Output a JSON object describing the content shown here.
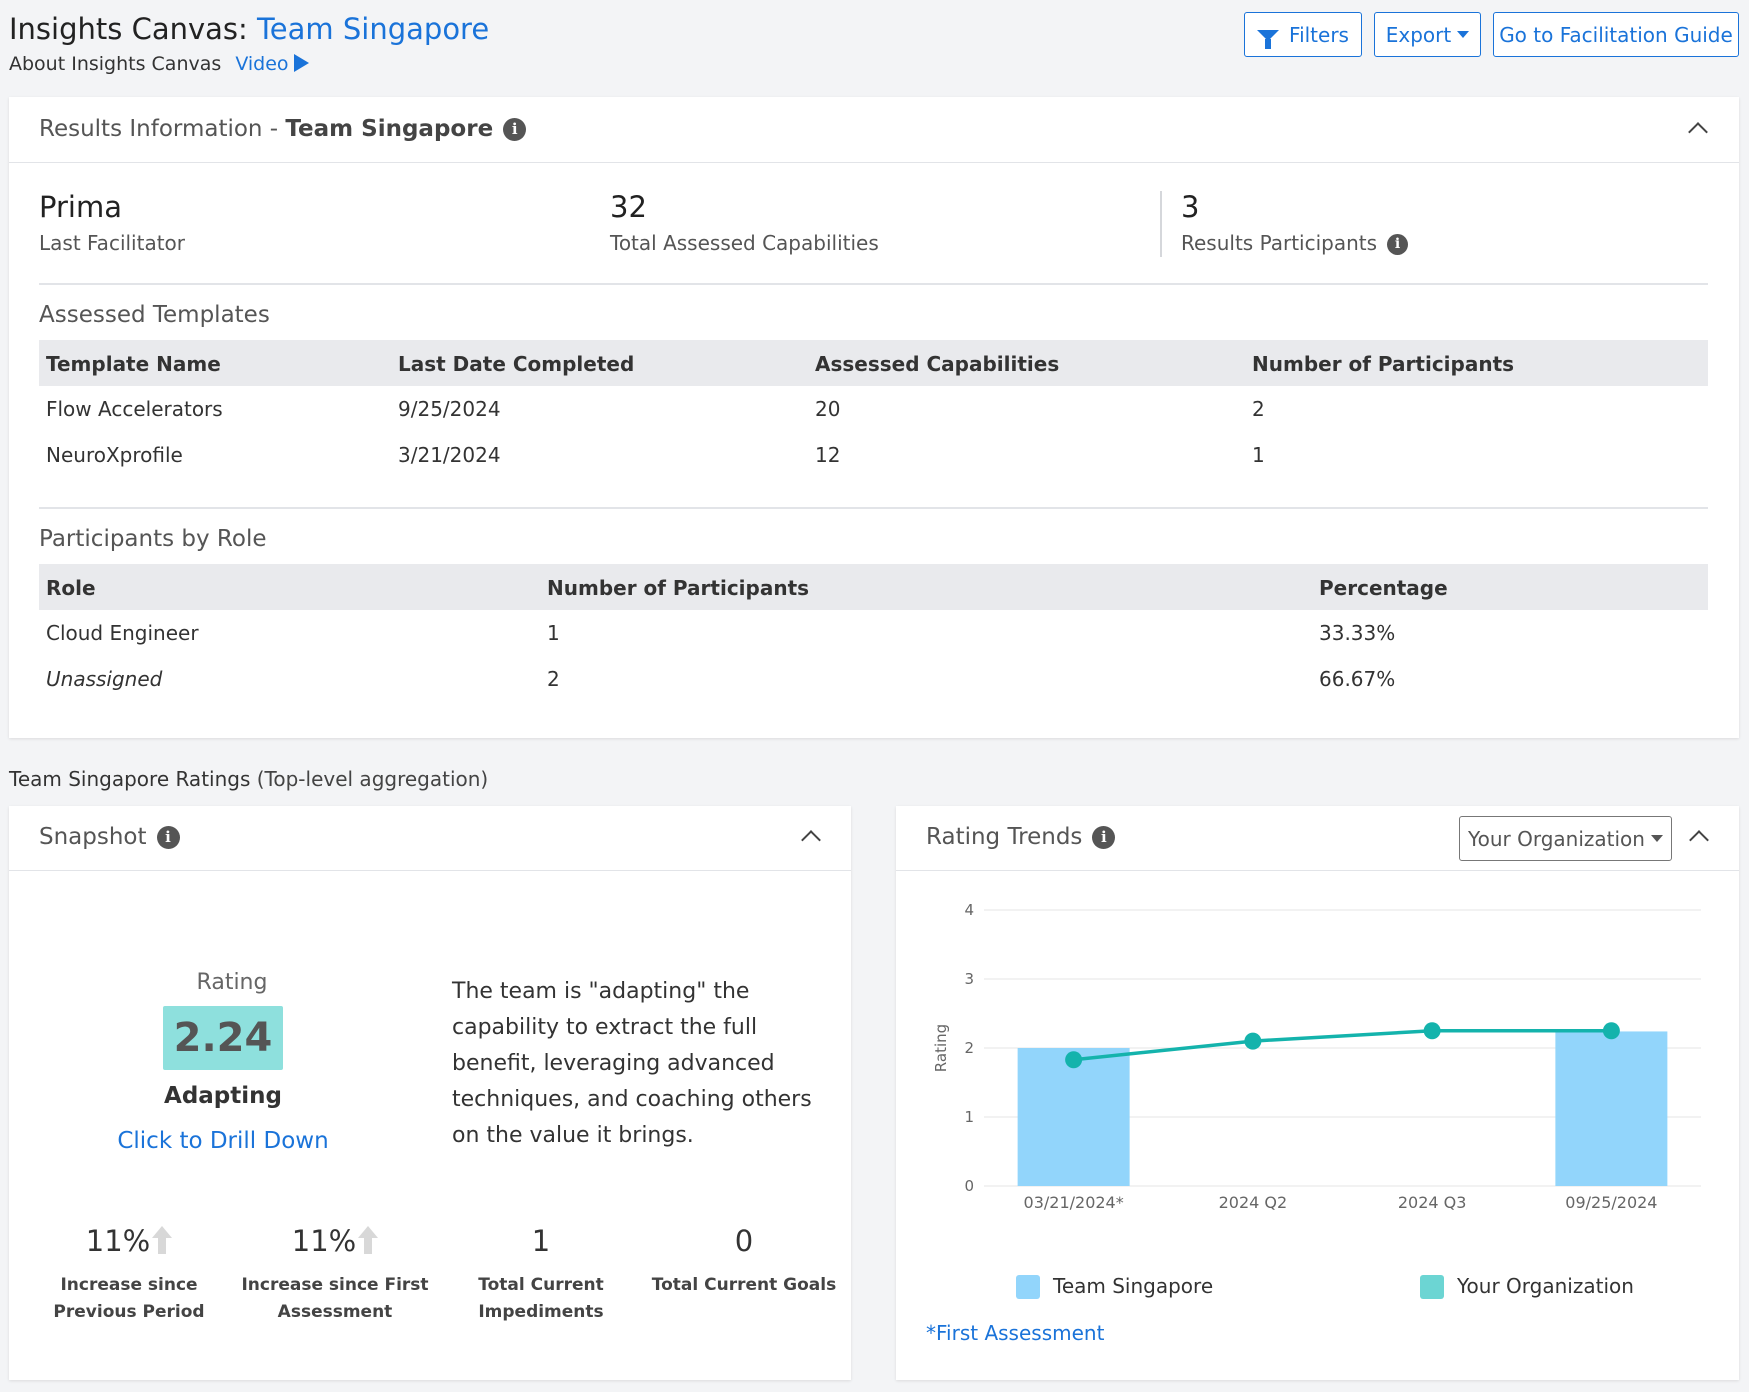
{
  "header": {
    "title_prefix": "Insights Canvas: ",
    "title_team": "Team Singapore",
    "about": "About Insights Canvas",
    "video": "Video",
    "filters_label": "Filters",
    "export_label": "Export",
    "guide_label": "Go to Facilitation Guide"
  },
  "results": {
    "title_prefix": "Results Information - ",
    "title_team": "Team Singapore",
    "facilitator_value": "Prima",
    "facilitator_label": "Last Facilitator",
    "capabilities_value": "32",
    "capabilities_label": "Total Assessed Capabilities",
    "participants_value": "3",
    "participants_label": "Results Participants"
  },
  "templates": {
    "title": "Assessed Templates",
    "columns": [
      "Template Name",
      "Last Date Completed",
      "Assessed Capabilities",
      "Number of Participants"
    ],
    "rows": [
      [
        "Flow Accelerators",
        "9/25/2024",
        "20",
        "2"
      ],
      [
        "NeuroXprofile",
        "3/21/2024",
        "12",
        "1"
      ]
    ]
  },
  "roles": {
    "title": "Participants by Role",
    "columns": [
      "Role",
      "Number of Participants",
      "Percentage"
    ],
    "rows": [
      [
        "Cloud Engineer",
        "1",
        "33.33%"
      ],
      [
        "Unassigned",
        "2",
        "66.67%"
      ]
    ]
  },
  "ratings": {
    "label": "Team Singapore Ratings",
    "sub": "(Top-level aggregation)"
  },
  "snapshot": {
    "title": "Snapshot",
    "rating_label": "Rating",
    "rating_value": "2.24",
    "rating_level": "Adapting",
    "drill_label": "Click to Drill Down",
    "description": "The team is \"adapting\" the capability to extract the full benefit, leveraging advanced techniques, and coaching others on the value it brings.",
    "kpis": [
      {
        "value": "11%",
        "label": "Increase since Previous Period",
        "arrow": true
      },
      {
        "value": "11%",
        "label": "Increase since First Assessment",
        "arrow": true
      },
      {
        "value": "1",
        "label": "Total Current Impediments",
        "arrow": false
      },
      {
        "value": "0",
        "label": "Total Current Goals",
        "arrow": false
      }
    ],
    "colors": {
      "rating_box": "#8ee0dd"
    }
  },
  "trends": {
    "title": "Rating Trends",
    "dropdown_value": "Your Organization",
    "first_assessment_note": "*First Assessment"
  },
  "chart_data": {
    "type": "bar",
    "categories": [
      "03/21/2024*",
      "2024 Q2",
      "2024 Q3",
      "09/25/2024"
    ],
    "ylabel": "Rating",
    "ylim": [
      0,
      4
    ],
    "yticks": [
      "0",
      "1",
      "2",
      "3",
      "4"
    ],
    "grid": true,
    "legend_position": "bottom",
    "series": [
      {
        "name": "Team Singapore",
        "type": "bar",
        "color": "#92d5fb",
        "values": [
          2.0,
          null,
          null,
          2.24
        ]
      },
      {
        "name": "Your Organization",
        "type": "line",
        "color": "#14b3ac",
        "values": [
          1.83,
          2.1,
          2.25,
          2.25
        ]
      }
    ]
  }
}
